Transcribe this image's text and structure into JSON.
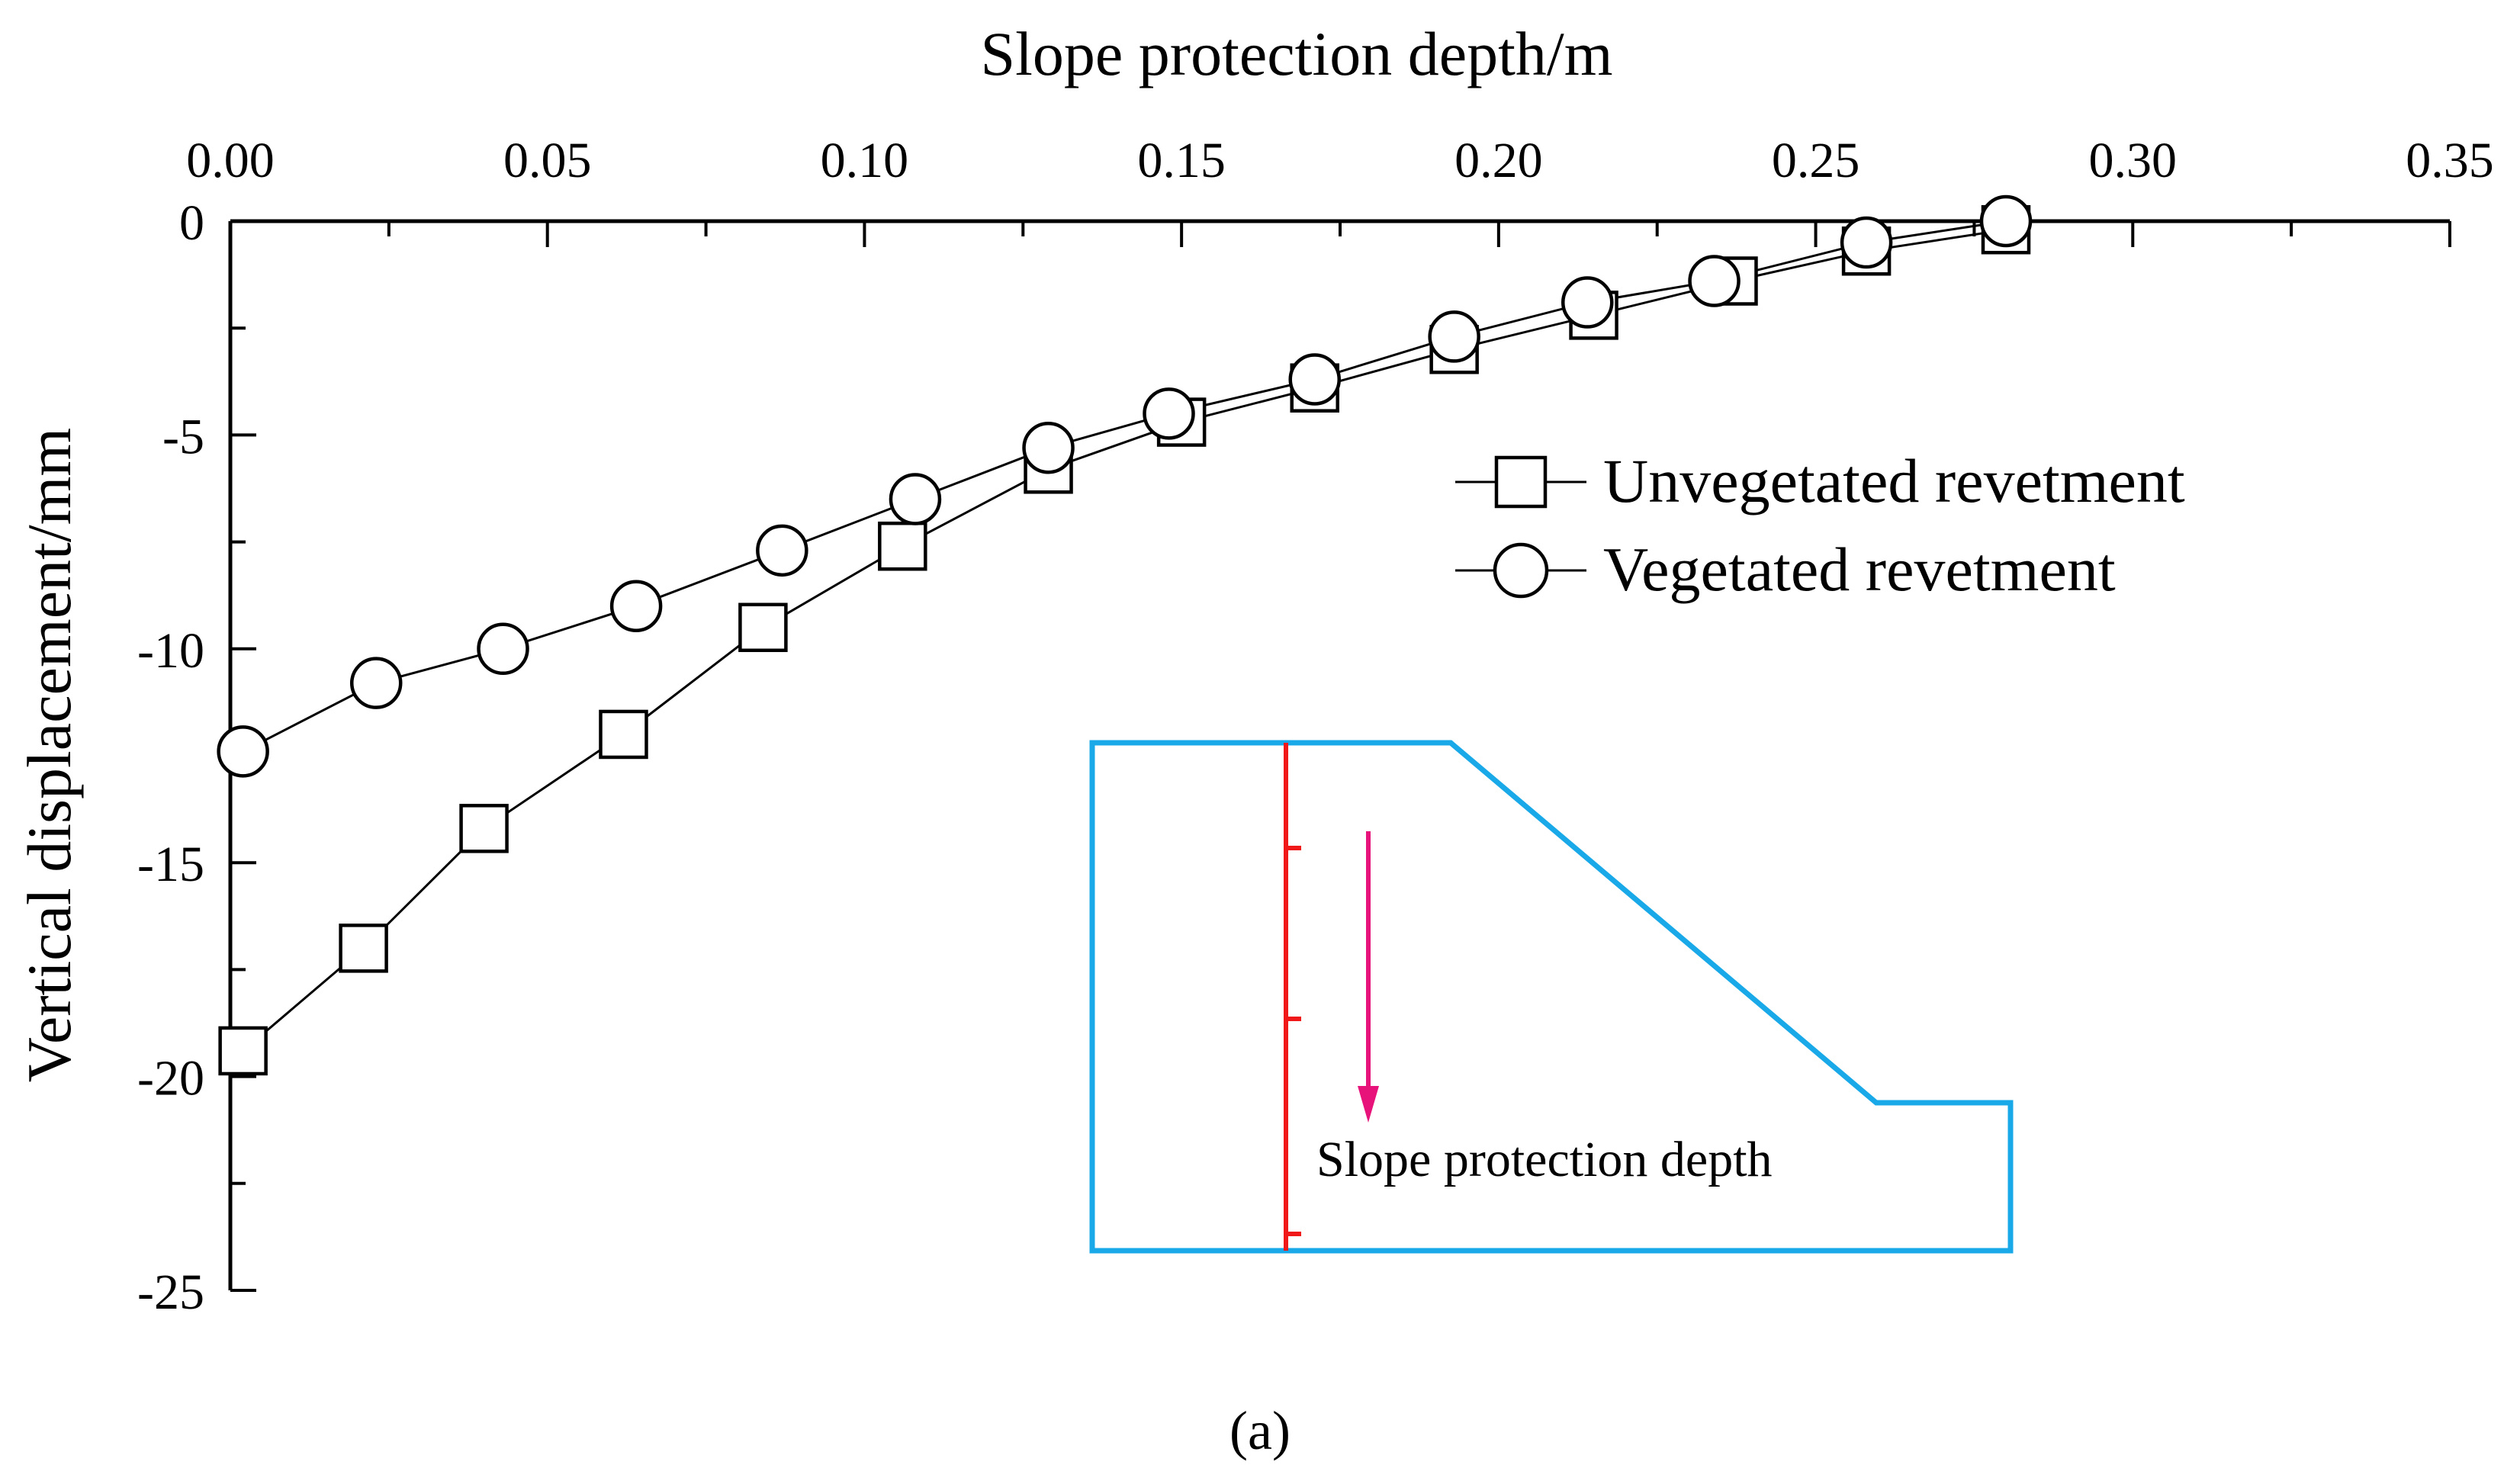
{
  "chart_data": {
    "type": "line",
    "title": "",
    "xlabel": "Slope protection depth/m",
    "ylabel": "Vertical displacement/mm",
    "x_axis_position": "top",
    "xlim": [
      0.0,
      0.35
    ],
    "ylim": [
      -25,
      0
    ],
    "xticks": [
      "0.00",
      "0.05",
      "0.10",
      "0.15",
      "0.20",
      "0.25",
      "0.30",
      "0.35"
    ],
    "yticks": [
      "0",
      "-5",
      "-10",
      "-15",
      "-20",
      "-25"
    ],
    "legend_position": "right",
    "series": [
      {
        "name": "Unvegetated revetment",
        "marker": "square",
        "x": [
          0.002,
          0.021,
          0.04,
          0.062,
          0.084,
          0.106,
          0.129,
          0.15,
          0.171,
          0.193,
          0.215,
          0.237,
          0.258,
          0.28
        ],
        "y": [
          -19.4,
          -17.0,
          -14.2,
          -12.0,
          -9.5,
          -7.6,
          -5.8,
          -4.7,
          -3.9,
          -3.0,
          -2.2,
          -1.4,
          -0.7,
          -0.2
        ]
      },
      {
        "name": "Vegetated revetment",
        "marker": "circle",
        "x": [
          0.002,
          0.023,
          0.043,
          0.064,
          0.087,
          0.108,
          0.129,
          0.148,
          0.171,
          0.193,
          0.214,
          0.234,
          0.258,
          0.28
        ],
        "y": [
          -12.4,
          -10.8,
          -10.0,
          -9.0,
          -7.7,
          -6.5,
          -5.3,
          -4.5,
          -3.7,
          -2.7,
          -1.9,
          -1.4,
          -0.5,
          0.0
        ]
      }
    ],
    "inset": {
      "label": "Slope protection depth",
      "outline_color": "#1aa9e8",
      "pole_color": "#f01818",
      "arrow_color": "#e8137a"
    }
  },
  "caption": "(a)"
}
